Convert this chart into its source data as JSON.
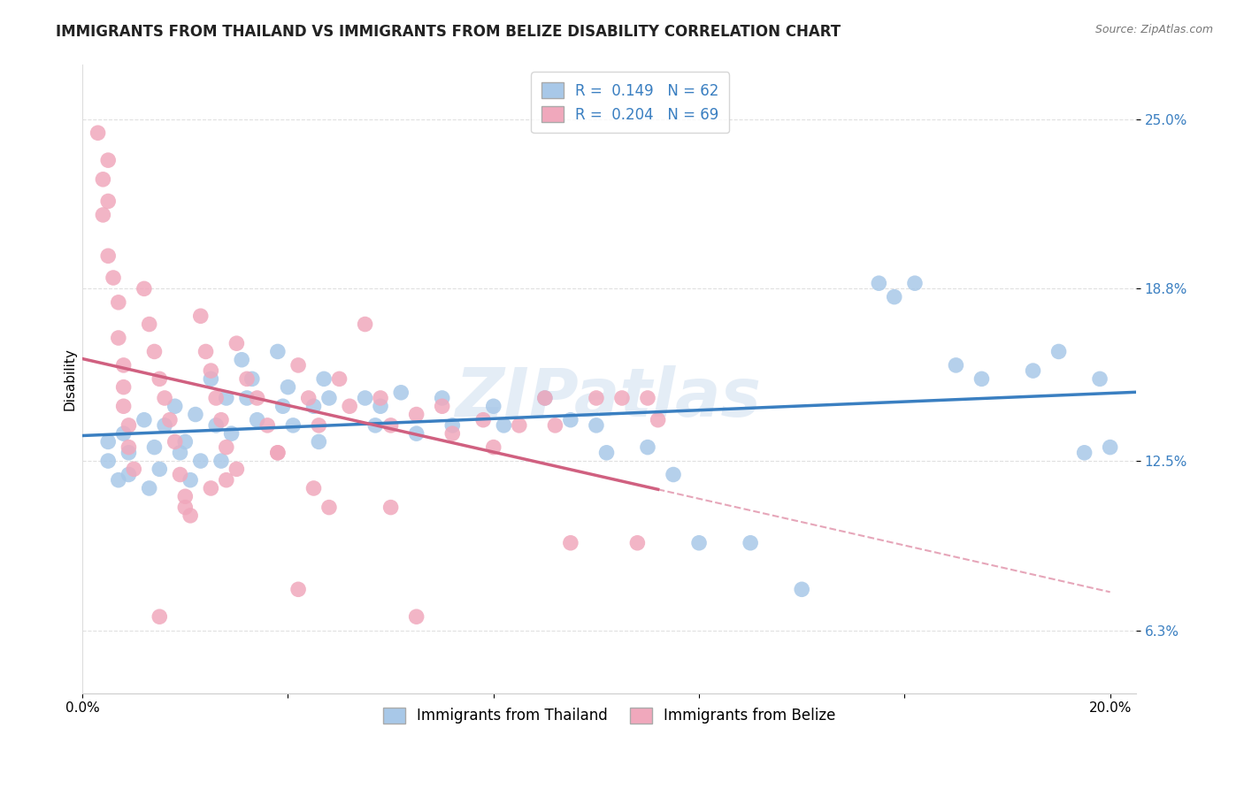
{
  "title": "IMMIGRANTS FROM THAILAND VS IMMIGRANTS FROM BELIZE DISABILITY CORRELATION CHART",
  "source": "Source: ZipAtlas.com",
  "ylabel": "Disability",
  "watermark": "ZIPatlas",
  "xlim": [
    0.0,
    0.205
  ],
  "ylim": [
    0.04,
    0.27
  ],
  "xticks": [
    0.0,
    0.04,
    0.08,
    0.12,
    0.16,
    0.2
  ],
  "xticklabels": [
    "0.0%",
    "",
    "",
    "",
    "",
    "20.0%"
  ],
  "yticks": [
    0.063,
    0.125,
    0.188,
    0.25
  ],
  "yticklabels": [
    "6.3%",
    "12.5%",
    "18.8%",
    "25.0%"
  ],
  "thailand_color": "#a8c8e8",
  "belize_color": "#f0a8bc",
  "thailand_line_color": "#3a7fc1",
  "belize_line_color": "#d06080",
  "dashed_line_color": "#e090a8",
  "R_thailand": 0.149,
  "N_thailand": 62,
  "R_belize": 0.204,
  "N_belize": 69,
  "thailand_scatter_x": [
    0.005,
    0.005,
    0.007,
    0.008,
    0.009,
    0.009,
    0.012,
    0.013,
    0.014,
    0.015,
    0.016,
    0.018,
    0.019,
    0.02,
    0.021,
    0.022,
    0.023,
    0.025,
    0.026,
    0.027,
    0.028,
    0.029,
    0.031,
    0.032,
    0.033,
    0.034,
    0.038,
    0.039,
    0.04,
    0.041,
    0.045,
    0.046,
    0.047,
    0.048,
    0.055,
    0.057,
    0.058,
    0.062,
    0.065,
    0.07,
    0.072,
    0.08,
    0.082,
    0.09,
    0.095,
    0.1,
    0.102,
    0.11,
    0.115,
    0.12,
    0.13,
    0.14,
    0.155,
    0.158,
    0.162,
    0.17,
    0.175,
    0.185,
    0.19,
    0.195,
    0.198,
    0.2
  ],
  "thailand_scatter_y": [
    0.125,
    0.132,
    0.118,
    0.135,
    0.128,
    0.12,
    0.14,
    0.115,
    0.13,
    0.122,
    0.138,
    0.145,
    0.128,
    0.132,
    0.118,
    0.142,
    0.125,
    0.155,
    0.138,
    0.125,
    0.148,
    0.135,
    0.162,
    0.148,
    0.155,
    0.14,
    0.165,
    0.145,
    0.152,
    0.138,
    0.145,
    0.132,
    0.155,
    0.148,
    0.148,
    0.138,
    0.145,
    0.15,
    0.135,
    0.148,
    0.138,
    0.145,
    0.138,
    0.148,
    0.14,
    0.138,
    0.128,
    0.13,
    0.12,
    0.095,
    0.095,
    0.078,
    0.19,
    0.185,
    0.19,
    0.16,
    0.155,
    0.158,
    0.165,
    0.128,
    0.155,
    0.13
  ],
  "belize_scatter_x": [
    0.003,
    0.004,
    0.004,
    0.005,
    0.005,
    0.005,
    0.006,
    0.007,
    0.007,
    0.008,
    0.008,
    0.008,
    0.009,
    0.009,
    0.01,
    0.012,
    0.013,
    0.014,
    0.015,
    0.016,
    0.017,
    0.018,
    0.019,
    0.02,
    0.021,
    0.023,
    0.024,
    0.025,
    0.026,
    0.027,
    0.028,
    0.03,
    0.032,
    0.034,
    0.036,
    0.038,
    0.042,
    0.044,
    0.046,
    0.05,
    0.052,
    0.058,
    0.06,
    0.065,
    0.07,
    0.072,
    0.078,
    0.08,
    0.085,
    0.09,
    0.092,
    0.095,
    0.1,
    0.105,
    0.108,
    0.11,
    0.112,
    0.06,
    0.03,
    0.015,
    0.025,
    0.042,
    0.055,
    0.045,
    0.02,
    0.038,
    0.028,
    0.048,
    0.065
  ],
  "belize_scatter_y": [
    0.245,
    0.228,
    0.215,
    0.235,
    0.22,
    0.2,
    0.192,
    0.183,
    0.17,
    0.16,
    0.152,
    0.145,
    0.138,
    0.13,
    0.122,
    0.188,
    0.175,
    0.165,
    0.155,
    0.148,
    0.14,
    0.132,
    0.12,
    0.112,
    0.105,
    0.178,
    0.165,
    0.158,
    0.148,
    0.14,
    0.13,
    0.168,
    0.155,
    0.148,
    0.138,
    0.128,
    0.16,
    0.148,
    0.138,
    0.155,
    0.145,
    0.148,
    0.138,
    0.142,
    0.145,
    0.135,
    0.14,
    0.13,
    0.138,
    0.148,
    0.138,
    0.095,
    0.148,
    0.148,
    0.095,
    0.148,
    0.14,
    0.108,
    0.122,
    0.068,
    0.115,
    0.078,
    0.175,
    0.115,
    0.108,
    0.128,
    0.118,
    0.108,
    0.068
  ],
  "background_color": "#ffffff",
  "grid_color": "#e0e0e0",
  "title_fontsize": 12,
  "axis_label_fontsize": 11,
  "tick_fontsize": 11,
  "legend_fontsize": 12
}
